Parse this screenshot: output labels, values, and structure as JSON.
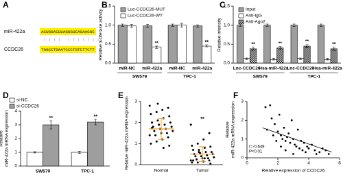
{
  "sequence_panel": {
    "panel": "A",
    "mirna_name": "miR-422a",
    "mirna_seq": "ACUGGACUUAGGGUCAGAAGGC",
    "pairing": " : : : :   : : : : : : : ",
    "target_name": "CCDC26",
    "target_seq": "TGGCCTGAATCCCTGTCTTCTT"
  },
  "chart_data": [
    {
      "type": "bar",
      "panel": "B",
      "ylabel": "Relative luciferase activity",
      "categories": [
        "miR-NC",
        "miR-422a",
        "miR-NC",
        "miR-422a"
      ],
      "groups": [
        "SW579",
        "TPC-1"
      ],
      "ylim": [
        0,
        1.5
      ],
      "yticks": [
        {
          "value": 0,
          "label": "0.0"
        },
        0.5,
        {
          "value": 1,
          "label": "1.0"
        },
        1.5
      ],
      "series": [
        {
          "name": "Luc-CCDC26-MUT",
          "color": "#9e9e9e",
          "values": [
            1.0,
            0.98,
            1.0,
            0.98
          ],
          "errors": [
            0.03,
            0.04,
            0.03,
            0.03
          ]
        },
        {
          "name": "Luc-CCDC26-WT",
          "color": "#ffffff",
          "values": [
            0.98,
            0.42,
            1.0,
            0.45
          ],
          "errors": [
            0.04,
            0.03,
            0.05,
            0.03
          ],
          "sig": [
            null,
            "**",
            null,
            "**"
          ]
        }
      ]
    },
    {
      "type": "bar",
      "panel": "C",
      "ylabel": "Relative intensity",
      "categories": [
        "Lnc-CCDC26",
        "Hsa-miR-422a",
        "Lnc-CCDC26",
        "Hsa-miR-422a"
      ],
      "groups": [
        "SW579",
        "TPC-1"
      ],
      "ylim": [
        0,
        1.5
      ],
      "yticks": [
        {
          "value": 0,
          "label": "0.0"
        },
        0.5,
        {
          "value": 1,
          "label": "1.0"
        },
        1.5
      ],
      "series": [
        {
          "name": "Input",
          "color": "#9e9e9e",
          "values": [
            1.0,
            1.0,
            1.0,
            1.0
          ],
          "errors": [
            0.03,
            0.03,
            0.03,
            0.03
          ]
        },
        {
          "name": "Anti-IgG",
          "color": "#ffffff",
          "values": [
            0.12,
            0.1,
            0.12,
            0.1
          ],
          "errors": [
            0.02,
            0.02,
            0.02,
            0.02
          ]
        },
        {
          "name": "Anti-Ago2",
          "color": "#000000",
          "pattern": "checker",
          "values": [
            0.38,
            0.4,
            0.45,
            0.38
          ],
          "errors": [
            0.04,
            0.04,
            0.04,
            0.04
          ],
          "sig": [
            "**",
            "**",
            "**",
            "**"
          ]
        }
      ]
    },
    {
      "type": "bar",
      "panel": "D",
      "ylabel": [
        "Relative",
        "miR-422a mRNA expression"
      ],
      "categories": [
        "SW579",
        "TPC-1"
      ],
      "ylim": [
        0,
        4
      ],
      "yticks": [
        0,
        1,
        2,
        3,
        4
      ],
      "series": [
        {
          "name": "si-NC",
          "color": "#ffffff",
          "values": [
            1.0,
            1.0
          ],
          "errors": [
            0.05,
            0.08
          ]
        },
        {
          "name": "si-CCDC26",
          "color": "#9e9e9e",
          "values": [
            3.0,
            3.2
          ],
          "errors": [
            0.3,
            0.2
          ],
          "sig": [
            "**",
            "**"
          ]
        }
      ]
    },
    {
      "type": "strip",
      "panel": "E",
      "ylabel": "Relative miR-422a mRNA expression",
      "ylim": [
        0,
        3
      ],
      "yticks": [
        0,
        1,
        2,
        3
      ],
      "mean_color": "#f0a030",
      "groups": [
        {
          "name": "Normal",
          "mean": 1.7,
          "sd": 0.5,
          "values": [
            2.8,
            2.7,
            2.6,
            2.5,
            2.4,
            2.3,
            2.2,
            2.1,
            2.0,
            2.0,
            1.9,
            1.9,
            1.8,
            1.8,
            1.7,
            1.7,
            1.6,
            1.6,
            1.5,
            1.5,
            1.4,
            1.4,
            1.3,
            1.2,
            1.1,
            1.0,
            0.9,
            0.8,
            2.9,
            1.75
          ]
        },
        {
          "name": "Tumor",
          "mean": 0.5,
          "sd": 0.35,
          "sig": "**",
          "values": [
            1.9,
            1.5,
            1.2,
            1.0,
            0.9,
            0.85,
            0.8,
            0.7,
            0.7,
            0.6,
            0.6,
            0.55,
            0.5,
            0.5,
            0.45,
            0.4,
            0.4,
            0.35,
            0.3,
            0.3,
            0.25,
            0.2,
            0.2,
            0.15,
            0.1,
            0.1,
            0.05,
            0.3,
            0.6,
            0.2
          ]
        }
      ]
    },
    {
      "type": "scatter",
      "panel": "F",
      "ylabel": [
        "Relative",
        "miR-422a mRNA expression"
      ],
      "xlabel": "Relative expression of CCDC26",
      "xlim": [
        0,
        6
      ],
      "xticks": [
        0,
        2,
        4,
        6
      ],
      "ylim": [
        0,
        3
      ],
      "yticks": [
        0,
        1,
        2,
        3
      ],
      "x": [
        1.2,
        1.5,
        1.3,
        1.6,
        1.8,
        2.0,
        2.1,
        2.2,
        2.3,
        2.4,
        2.5,
        2.6,
        2.7,
        2.8,
        2.9,
        3.0,
        3.1,
        3.2,
        3.3,
        3.4,
        3.5,
        3.6,
        3.7,
        3.8,
        3.9,
        4.0,
        4.2,
        4.4,
        4.5,
        4.7,
        4.9,
        5.1,
        5.3,
        1.9,
        2.5,
        3.0,
        2.2,
        1.7
      ],
      "y": [
        2.7,
        2.8,
        1.5,
        2.1,
        1.8,
        1.4,
        2.3,
        1.2,
        1.0,
        1.6,
        0.9,
        1.1,
        1.3,
        0.8,
        2.0,
        1.0,
        0.7,
        0.6,
        1.5,
        0.5,
        0.9,
        0.4,
        0.8,
        0.3,
        0.6,
        0.5,
        0.7,
        0.4,
        0.2,
        0.3,
        0.5,
        0.4,
        0.2,
        0.9,
        0.4,
        0.2,
        0.6,
        1.2
      ],
      "fit_line": {
        "x": [
          1,
          5.5
        ],
        "y": [
          1.6,
          0.3
        ]
      },
      "annotations": [
        "r=-0.649",
        "P<0.01"
      ]
    }
  ]
}
